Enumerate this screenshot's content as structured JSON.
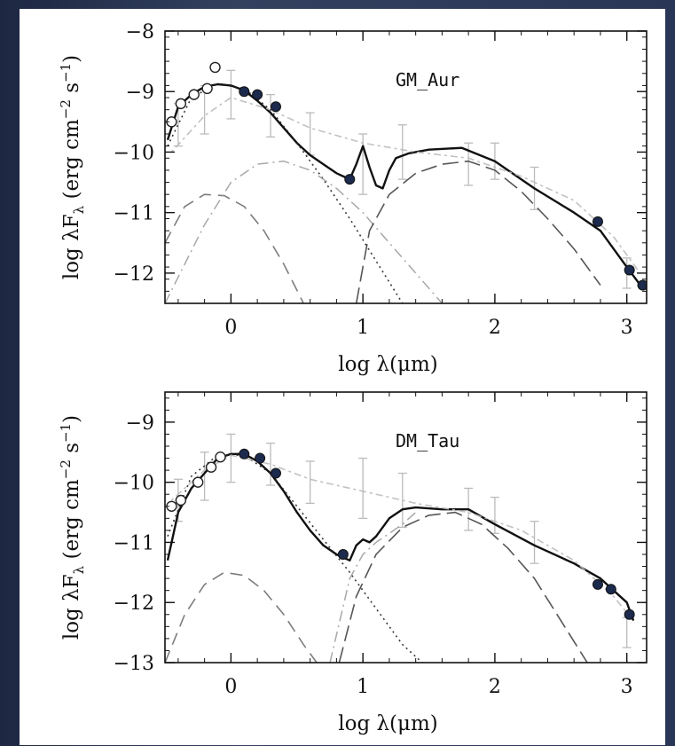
{
  "chart_data": [
    {
      "type": "line",
      "object_label": "GM_Aur",
      "xlabel": "log λ(μm)",
      "ylabel": "log λF_λ (erg cm^-2 s^-1)",
      "xlim": [
        -0.5,
        3.15
      ],
      "ylim": [
        -12.5,
        -8
      ],
      "xticks": [
        0,
        1,
        2,
        3
      ],
      "xtick_labels": [
        "0",
        "1",
        "2",
        "3"
      ],
      "yticks": [
        -8,
        -9,
        -10,
        -11,
        -12
      ],
      "ytick_labels": [
        "−8",
        "−9",
        "−10",
        "−11",
        "−12"
      ],
      "series": [
        {
          "style": "solid-model",
          "x": [
            -0.48,
            -0.4,
            -0.3,
            -0.2,
            -0.1,
            0,
            0.1,
            0.2,
            0.3,
            0.4,
            0.5,
            0.6,
            0.7,
            0.8,
            0.9,
            0.95,
            1.0,
            1.05,
            1.1,
            1.15,
            1.2,
            1.25,
            1.35,
            1.5,
            1.75,
            2.0,
            2.3,
            2.6,
            2.8,
            3.0,
            3.12
          ],
          "y": [
            -9.8,
            -9.25,
            -9.05,
            -8.92,
            -8.88,
            -8.9,
            -8.98,
            -9.15,
            -9.35,
            -9.6,
            -9.85,
            -10.05,
            -10.2,
            -10.35,
            -10.45,
            -10.2,
            -9.9,
            -10.25,
            -10.55,
            -10.6,
            -10.3,
            -10.1,
            -10.02,
            -9.96,
            -9.93,
            -10.15,
            -10.6,
            -11.0,
            -11.3,
            -11.9,
            -12.25
          ]
        },
        {
          "style": "dotted-photosphere",
          "x": [
            -0.48,
            -0.3,
            -0.1,
            0.1,
            0.3,
            0.5,
            0.7,
            0.9,
            1.1,
            1.3
          ],
          "y": [
            -9.9,
            -9.1,
            -8.87,
            -8.95,
            -9.3,
            -9.85,
            -10.45,
            -11.1,
            -11.8,
            -12.5
          ]
        },
        {
          "style": "dash-accretion",
          "x": [
            -0.5,
            -0.35,
            -0.2,
            -0.05,
            0.1,
            0.25,
            0.4,
            0.55
          ],
          "y": [
            -11.5,
            -10.9,
            -10.7,
            -10.72,
            -10.9,
            -11.3,
            -11.85,
            -12.5
          ]
        },
        {
          "style": "dash-dot-wall",
          "x": [
            -0.5,
            -0.2,
            0.0,
            0.2,
            0.4,
            0.6,
            0.8,
            1.0,
            1.2,
            1.4,
            1.6
          ],
          "y": [
            -12.5,
            -11.2,
            -10.5,
            -10.2,
            -10.15,
            -10.3,
            -10.6,
            -11.0,
            -11.5,
            -12.0,
            -12.5
          ]
        },
        {
          "style": "long-dash-outer-disk",
          "x": [
            0.95,
            1.05,
            1.2,
            1.4,
            1.6,
            1.8,
            2.0,
            2.2,
            2.4,
            2.6,
            2.8
          ],
          "y": [
            -12.5,
            -11.3,
            -10.7,
            -10.35,
            -10.2,
            -10.15,
            -10.3,
            -10.65,
            -11.1,
            -11.6,
            -12.2
          ]
        },
        {
          "style": "dotdash-median",
          "x": [
            -0.45,
            -0.2,
            0.0,
            0.3,
            0.6,
            1.0,
            1.4,
            1.8,
            2.2,
            2.6,
            2.9,
            3.1
          ],
          "y": [
            -10.0,
            -9.4,
            -9.1,
            -9.3,
            -9.6,
            -9.85,
            -10.0,
            -10.1,
            -10.4,
            -10.8,
            -11.4,
            -12.0
          ]
        }
      ],
      "filled_points": {
        "x": [
          0.1,
          0.2,
          0.34,
          0.9,
          2.78,
          3.02,
          3.12
        ],
        "y": [
          -9.0,
          -9.05,
          -9.25,
          -10.45,
          -11.15,
          -11.95,
          -12.2
        ]
      },
      "open_points": {
        "x": [
          -0.45,
          -0.38,
          -0.28,
          -0.18,
          -0.12
        ],
        "y": [
          -9.5,
          -9.2,
          -9.05,
          -8.95,
          -8.6
        ]
      },
      "median_error_bars": {
        "x": [
          -0.4,
          -0.2,
          0.0,
          0.3,
          0.6,
          1.0,
          1.3,
          1.8,
          2.0,
          2.3,
          3.0
        ],
        "y": [
          -9.55,
          -9.3,
          -9.05,
          -9.4,
          -9.7,
          -10.2,
          -10.0,
          -10.2,
          -10.15,
          -10.6,
          -12.0
        ],
        "err": [
          0.35,
          0.4,
          0.4,
          0.35,
          0.35,
          0.5,
          0.45,
          0.35,
          0.3,
          0.35,
          0.25
        ]
      }
    },
    {
      "type": "line",
      "object_label": "DM_Tau",
      "xlabel": "log λ(μm)",
      "ylabel": "log λF_λ (erg cm^-2 s^-1)",
      "xlim": [
        -0.5,
        3.15
      ],
      "ylim": [
        -13,
        -8.5
      ],
      "xticks": [
        0,
        1,
        2,
        3
      ],
      "xtick_labels": [
        "0",
        "1",
        "2",
        "3"
      ],
      "yticks": [
        -9,
        -10,
        -11,
        -12,
        -13
      ],
      "ytick_labels": [
        "−9",
        "−10",
        "−11",
        "−12",
        "−13"
      ],
      "series": [
        {
          "style": "solid-model",
          "x": [
            -0.48,
            -0.4,
            -0.3,
            -0.2,
            -0.1,
            0,
            0.1,
            0.2,
            0.3,
            0.4,
            0.5,
            0.6,
            0.7,
            0.8,
            0.85,
            0.9,
            0.95,
            1.0,
            1.05,
            1.1,
            1.2,
            1.3,
            1.4,
            1.6,
            1.8,
            2.0,
            2.3,
            2.6,
            2.8,
            3.0,
            3.05
          ],
          "y": [
            -11.3,
            -10.5,
            -10.1,
            -9.85,
            -9.6,
            -9.53,
            -9.53,
            -9.65,
            -9.85,
            -10.15,
            -10.5,
            -10.8,
            -11.05,
            -11.2,
            -11.25,
            -11.3,
            -11.05,
            -10.95,
            -11.0,
            -10.9,
            -10.6,
            -10.45,
            -10.42,
            -10.45,
            -10.45,
            -10.7,
            -11.05,
            -11.35,
            -11.6,
            -12.0,
            -12.3
          ]
        },
        {
          "style": "dotted-photosphere",
          "x": [
            -0.48,
            -0.3,
            -0.1,
            0.1,
            0.3,
            0.5,
            0.7,
            0.9,
            1.1,
            1.3,
            1.45
          ],
          "y": [
            -10.9,
            -9.9,
            -9.55,
            -9.55,
            -9.85,
            -10.4,
            -10.95,
            -11.5,
            -12.1,
            -12.7,
            -13.0
          ]
        },
        {
          "style": "dash-accretion",
          "x": [
            -0.5,
            -0.35,
            -0.2,
            -0.05,
            0.1,
            0.25,
            0.4,
            0.55,
            0.65
          ],
          "y": [
            -13.0,
            -12.2,
            -11.7,
            -11.5,
            -11.55,
            -11.8,
            -12.2,
            -12.7,
            -13.0
          ]
        },
        {
          "style": "long-dash-outer-disk",
          "x": [
            0.82,
            0.95,
            1.1,
            1.3,
            1.5,
            1.7,
            1.9,
            2.1,
            2.3,
            2.5,
            2.7
          ],
          "y": [
            -13.0,
            -11.9,
            -11.2,
            -10.75,
            -10.55,
            -10.5,
            -10.7,
            -11.1,
            -11.6,
            -12.3,
            -13.0
          ]
        },
        {
          "style": "dash-dot-wall",
          "x": [
            0.75,
            0.9,
            1.0,
            1.1,
            1.2,
            1.3,
            1.4
          ],
          "y": [
            -13.0,
            -11.6,
            -11.2,
            -11.0,
            -10.85,
            -10.7,
            -10.5
          ]
        },
        {
          "style": "dotdash-median",
          "x": [
            -0.45,
            -0.2,
            0.0,
            0.3,
            0.6,
            1.0,
            1.4,
            1.8,
            2.2,
            2.6,
            2.9,
            3.05
          ],
          "y": [
            -10.3,
            -9.8,
            -9.55,
            -9.7,
            -9.95,
            -10.15,
            -10.35,
            -10.5,
            -10.8,
            -11.3,
            -11.9,
            -12.3
          ]
        }
      ],
      "filled_points": {
        "x": [
          0.1,
          0.22,
          0.34,
          0.85,
          2.78,
          2.88,
          3.02
        ],
        "y": [
          -9.53,
          -9.6,
          -9.85,
          -11.2,
          -11.7,
          -11.78,
          -12.2
        ]
      },
      "open_points": {
        "x": [
          -0.45,
          -0.38,
          -0.25,
          -0.15,
          -0.08
        ],
        "y": [
          -10.4,
          -10.3,
          -10.0,
          -9.75,
          -9.58
        ]
      },
      "median_error_bars": {
        "x": [
          -0.4,
          -0.2,
          0.0,
          0.3,
          0.6,
          1.0,
          1.3,
          1.8,
          2.0,
          2.3,
          3.0
        ],
        "y": [
          -10.3,
          -9.9,
          -9.6,
          -9.7,
          -10.0,
          -10.1,
          -10.3,
          -10.45,
          -10.55,
          -11.0,
          -12.5
        ],
        "err": [
          0.35,
          0.4,
          0.4,
          0.35,
          0.35,
          0.5,
          0.45,
          0.35,
          0.3,
          0.35,
          0.25
        ]
      }
    }
  ]
}
